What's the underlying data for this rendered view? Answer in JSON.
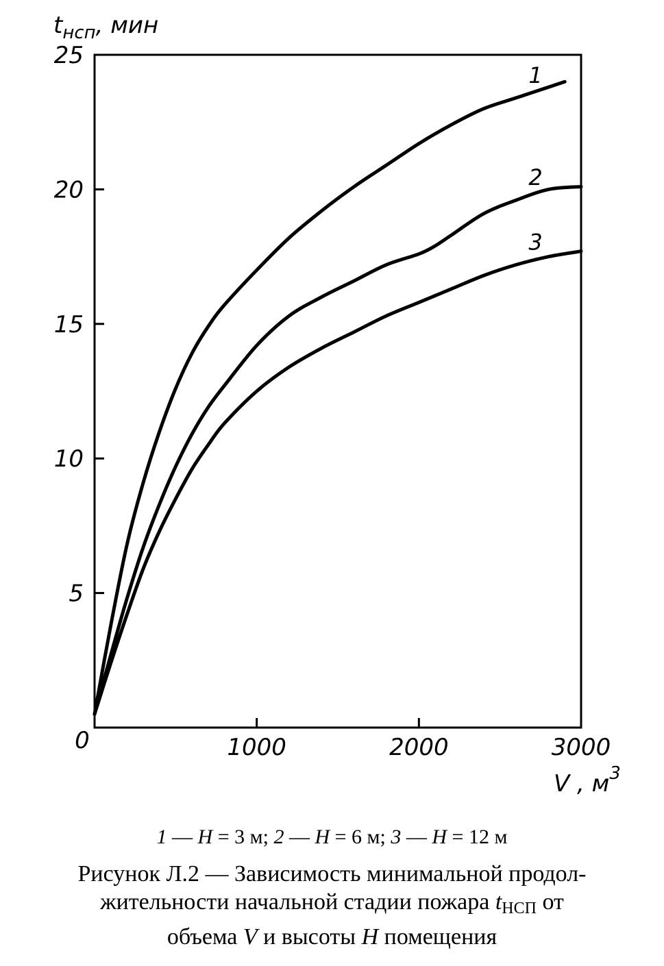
{
  "chart_data": {
    "type": "line",
    "ylabel_main": "t",
    "ylabel_sub": "нсп",
    "ylabel_unit": ", мин",
    "xlabel_main": "V , м",
    "xlabel_sup": "3",
    "xlim": [
      0,
      3000
    ],
    "ylim": [
      0,
      25
    ],
    "x_ticks": [
      0,
      1000,
      2000,
      3000
    ],
    "x_tick_labels": [
      "0",
      "1000",
      "2000",
      "3000"
    ],
    "y_ticks": [
      5,
      10,
      15,
      20,
      25
    ],
    "y_tick_labels": [
      "5",
      "10",
      "15",
      "20",
      "25"
    ],
    "grid": false,
    "series": [
      {
        "name": "1",
        "x": [
          0,
          100,
          200,
          300,
          400,
          500,
          600,
          700,
          800,
          1000,
          1200,
          1400,
          1600,
          1800,
          2000,
          2200,
          2400,
          2600,
          2800,
          2900
        ],
        "y": [
          0.5,
          3.8,
          6.8,
          9.1,
          11.0,
          12.6,
          13.9,
          14.9,
          15.7,
          17.0,
          18.2,
          19.2,
          20.1,
          20.9,
          21.7,
          22.4,
          23.0,
          23.4,
          23.8,
          24.0
        ]
      },
      {
        "name": "2",
        "x": [
          0,
          100,
          200,
          300,
          400,
          500,
          600,
          700,
          800,
          1000,
          1200,
          1400,
          1600,
          1800,
          2000,
          2100,
          2200,
          2400,
          2600,
          2800,
          3000
        ],
        "y": [
          0.5,
          2.7,
          4.8,
          6.7,
          8.3,
          9.7,
          10.9,
          11.9,
          12.7,
          14.2,
          15.3,
          16.0,
          16.6,
          17.2,
          17.6,
          17.9,
          18.3,
          19.1,
          19.6,
          20.0,
          20.1
        ]
      },
      {
        "name": "3",
        "x": [
          0,
          100,
          200,
          300,
          400,
          500,
          600,
          700,
          800,
          1000,
          1200,
          1400,
          1600,
          1800,
          2000,
          2200,
          2400,
          2600,
          2800,
          3000
        ],
        "y": [
          0.5,
          2.4,
          4.2,
          5.9,
          7.3,
          8.5,
          9.6,
          10.5,
          11.3,
          12.5,
          13.4,
          14.1,
          14.7,
          15.3,
          15.8,
          16.3,
          16.8,
          17.2,
          17.5,
          17.7
        ]
      }
    ],
    "curve_labels": [
      "1",
      "2",
      "3"
    ]
  },
  "legend_text": {
    "n1": "1",
    "t1": " — ",
    "h1": "H",
    "v1": " = 3 м; ",
    "n2": "2",
    "t2": " — ",
    "h2": "H",
    "v2": " = 6 м; ",
    "n3": "3",
    "t3": " — ",
    "h3": "H",
    "v3": " = 12 м"
  },
  "figure_title": {
    "line1": "Рисунок Л.2 — Зависимость минимальной продол-",
    "line2_a": "жительности начальной стадии пожара ",
    "line2_t": "t",
    "line2_sub": "НСП",
    "line2_b": " от",
    "line3_a": "объема ",
    "line3_v": "V",
    "line3_b": " и высоты ",
    "line3_h": "H",
    "line3_c": " помещения"
  }
}
